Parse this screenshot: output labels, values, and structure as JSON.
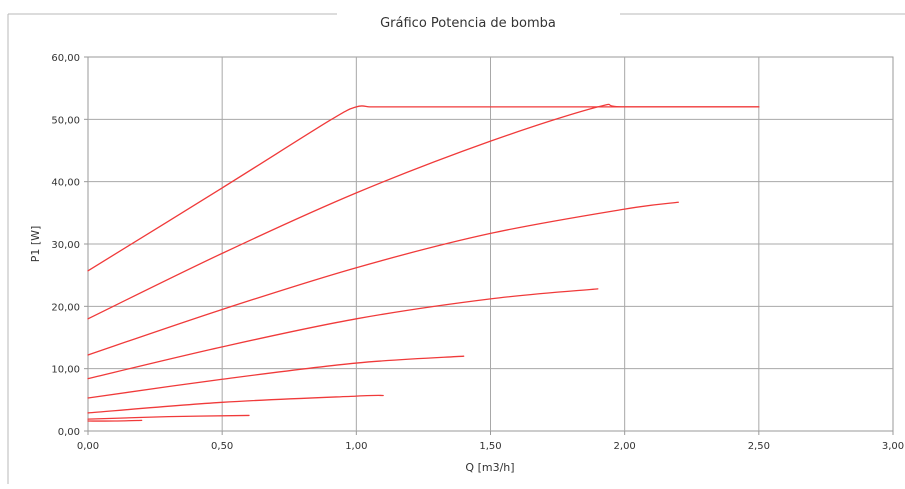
{
  "chart_data": {
    "type": "line",
    "title": "Gráfico Potencia de bomba",
    "xlabel": "Q [m3/h]",
    "ylabel": "P1 [W]",
    "xlim": [
      0,
      3
    ],
    "ylim": [
      0,
      60
    ],
    "xticks": [
      "0,00",
      "0,50",
      "1,00",
      "1,50",
      "2,00",
      "2,50",
      "3,00"
    ],
    "yticks": [
      "0,00",
      "10,00",
      "20,00",
      "30,00",
      "40,00",
      "50,00",
      "60,00"
    ],
    "grid": true,
    "legend": "none",
    "line_color": "#f03a3a",
    "series": [
      {
        "x": [
          0,
          0.5,
          0.9,
          1.0,
          1.05,
          1.1,
          1.5,
          2.0,
          2.5
        ],
        "y": [
          25.7,
          39.0,
          49.8,
          52.0,
          52.0,
          52.0,
          52.0,
          52.0,
          52.0
        ]
      },
      {
        "x": [
          0,
          0.5,
          1.0,
          1.5,
          1.9,
          2.0,
          2.5
        ],
        "y": [
          18.0,
          28.5,
          38.2,
          46.5,
          52.0,
          52.0,
          52.0
        ]
      },
      {
        "x": [
          0,
          0.5,
          1.0,
          1.5,
          2.0,
          2.2
        ],
        "y": [
          12.2,
          19.5,
          26.2,
          31.7,
          35.6,
          36.7
        ]
      },
      {
        "x": [
          0,
          0.5,
          1.0,
          1.5,
          1.9
        ],
        "y": [
          8.4,
          13.5,
          18.0,
          21.2,
          22.8
        ]
      },
      {
        "x": [
          0,
          0.5,
          1.0,
          1.4
        ],
        "y": [
          5.3,
          8.3,
          10.9,
          12.0
        ]
      },
      {
        "x": [
          0,
          0.5,
          1.0,
          1.1
        ],
        "y": [
          2.9,
          4.6,
          5.6,
          5.7
        ]
      },
      {
        "x": [
          0,
          0.3,
          0.6
        ],
        "y": [
          1.9,
          2.3,
          2.5
        ]
      },
      {
        "x": [
          0,
          0.1,
          0.2
        ],
        "y": [
          1.6,
          1.6,
          1.7
        ]
      }
    ]
  }
}
